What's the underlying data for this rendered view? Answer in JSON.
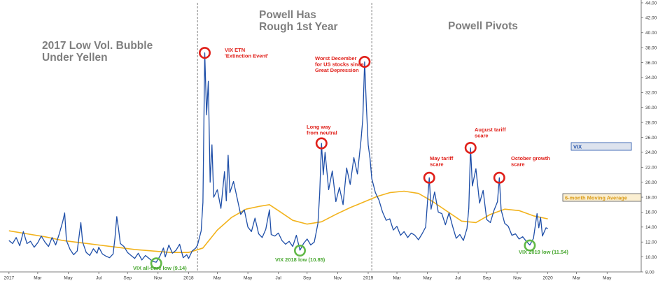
{
  "chart_data": {
    "type": "line",
    "title": "",
    "ylim": [
      8,
      44
    ],
    "y_ticks": [
      "8.00",
      "10.00",
      "12.00",
      "14.00",
      "16.00",
      "18.00",
      "20.00",
      "22.00",
      "24.00",
      "26.00",
      "28.00",
      "30.00",
      "32.00",
      "34.00",
      "36.00",
      "38.00",
      "40.00",
      "42.00",
      "44.00"
    ],
    "x_ticks": [
      {
        "label": "2017",
        "t": 2017.0
      },
      {
        "label": "Mar",
        "t": 2017.16
      },
      {
        "label": "May",
        "t": 2017.33
      },
      {
        "label": "Jul",
        "t": 2017.5
      },
      {
        "label": "Sep",
        "t": 2017.66
      },
      {
        "label": "Nov",
        "t": 2017.83
      },
      {
        "label": "2018",
        "t": 2018.0
      },
      {
        "label": "Mar",
        "t": 2018.16
      },
      {
        "label": "May",
        "t": 2018.33
      },
      {
        "label": "Jul",
        "t": 2018.5
      },
      {
        "label": "Sep",
        "t": 2018.66
      },
      {
        "label": "Nov",
        "t": 2018.83
      },
      {
        "label": "2019",
        "t": 2019.0
      },
      {
        "label": "Mar",
        "t": 2019.16
      },
      {
        "label": "May",
        "t": 2019.33
      },
      {
        "label": "Jul",
        "t": 2019.5
      },
      {
        "label": "Sep",
        "t": 2019.66
      },
      {
        "label": "Nov",
        "t": 2019.83
      },
      {
        "label": "2020",
        "t": 2020.0
      },
      {
        "label": "Mar",
        "t": 2020.16
      },
      {
        "label": "May",
        "t": 2020.33
      }
    ],
    "eras": [
      {
        "text": [
          "2017 Low Vol. Bubble",
          "Under Yellen"
        ]
      },
      {
        "text": [
          "Powell Has",
          "Rough 1st Year"
        ]
      },
      {
        "text": [
          "Powell Pivots"
        ]
      }
    ],
    "dividers": [
      2018.05,
      2019.02
    ],
    "series": [
      {
        "name": "VIX",
        "color": "#1f4fa8",
        "points": [
          [
            2017.0,
            12.2
          ],
          [
            2017.02,
            11.8
          ],
          [
            2017.04,
            12.6
          ],
          [
            2017.06,
            11.5
          ],
          [
            2017.08,
            13.4
          ],
          [
            2017.1,
            11.8
          ],
          [
            2017.12,
            12.1
          ],
          [
            2017.14,
            11.3
          ],
          [
            2017.16,
            11.9
          ],
          [
            2017.18,
            12.8
          ],
          [
            2017.2,
            12.0
          ],
          [
            2017.22,
            11.4
          ],
          [
            2017.24,
            12.6
          ],
          [
            2017.26,
            11.6
          ],
          [
            2017.28,
            13.1
          ],
          [
            2017.3,
            14.8
          ],
          [
            2017.31,
            15.9
          ],
          [
            2017.32,
            12.2
          ],
          [
            2017.34,
            11.0
          ],
          [
            2017.36,
            10.3
          ],
          [
            2017.38,
            10.8
          ],
          [
            2017.4,
            14.6
          ],
          [
            2017.41,
            12.0
          ],
          [
            2017.43,
            10.6
          ],
          [
            2017.45,
            10.2
          ],
          [
            2017.47,
            11.1
          ],
          [
            2017.49,
            10.5
          ],
          [
            2017.5,
            11.3
          ],
          [
            2017.52,
            10.4
          ],
          [
            2017.54,
            10.1
          ],
          [
            2017.56,
            9.9
          ],
          [
            2017.58,
            10.4
          ],
          [
            2017.59,
            12.5
          ],
          [
            2017.6,
            15.4
          ],
          [
            2017.61,
            13.8
          ],
          [
            2017.62,
            11.8
          ],
          [
            2017.64,
            11.4
          ],
          [
            2017.66,
            10.6
          ],
          [
            2017.68,
            10.2
          ],
          [
            2017.7,
            9.8
          ],
          [
            2017.72,
            10.5
          ],
          [
            2017.74,
            9.6
          ],
          [
            2017.76,
            10.2
          ],
          [
            2017.78,
            9.8
          ],
          [
            2017.8,
            9.4
          ],
          [
            2017.82,
            9.3
          ],
          [
            2017.84,
            10.1
          ],
          [
            2017.86,
            11.2
          ],
          [
            2017.87,
            10.0
          ],
          [
            2017.89,
            11.6
          ],
          [
            2017.91,
            10.5
          ],
          [
            2017.93,
            10.9
          ],
          [
            2017.95,
            11.7
          ],
          [
            2017.97,
            9.9
          ],
          [
            2017.99,
            10.3
          ],
          [
            2018.0,
            9.8
          ],
          [
            2018.02,
            10.8
          ],
          [
            2018.04,
            11.2
          ],
          [
            2018.05,
            11.6
          ],
          [
            2018.07,
            13.5
          ],
          [
            2018.08,
            17.3
          ],
          [
            2018.09,
            37.3
          ],
          [
            2018.1,
            29.0
          ],
          [
            2018.11,
            33.5
          ],
          [
            2018.12,
            20.0
          ],
          [
            2018.13,
            25.0
          ],
          [
            2018.14,
            18.0
          ],
          [
            2018.16,
            19.0
          ],
          [
            2018.18,
            16.5
          ],
          [
            2018.2,
            21.4
          ],
          [
            2018.21,
            17.5
          ],
          [
            2018.22,
            23.6
          ],
          [
            2018.23,
            18.6
          ],
          [
            2018.25,
            20.1
          ],
          [
            2018.27,
            17.9
          ],
          [
            2018.29,
            15.7
          ],
          [
            2018.31,
            16.3
          ],
          [
            2018.33,
            14.0
          ],
          [
            2018.35,
            13.4
          ],
          [
            2018.37,
            15.2
          ],
          [
            2018.39,
            13.1
          ],
          [
            2018.41,
            12.6
          ],
          [
            2018.43,
            13.7
          ],
          [
            2018.45,
            16.3
          ],
          [
            2018.46,
            13.0
          ],
          [
            2018.48,
            12.8
          ],
          [
            2018.5,
            13.2
          ],
          [
            2018.52,
            12.2
          ],
          [
            2018.54,
            11.7
          ],
          [
            2018.56,
            12.1
          ],
          [
            2018.58,
            11.4
          ],
          [
            2018.6,
            12.9
          ],
          [
            2018.62,
            10.9
          ],
          [
            2018.64,
            11.8
          ],
          [
            2018.66,
            12.4
          ],
          [
            2018.68,
            11.6
          ],
          [
            2018.7,
            12.0
          ],
          [
            2018.72,
            14.5
          ],
          [
            2018.73,
            18.5
          ],
          [
            2018.74,
            25.2
          ],
          [
            2018.75,
            21.0
          ],
          [
            2018.76,
            24.0
          ],
          [
            2018.78,
            19.0
          ],
          [
            2018.8,
            21.5
          ],
          [
            2018.82,
            17.4
          ],
          [
            2018.84,
            19.3
          ],
          [
            2018.86,
            17.0
          ],
          [
            2018.88,
            21.9
          ],
          [
            2018.9,
            19.7
          ],
          [
            2018.92,
            23.3
          ],
          [
            2018.94,
            21.1
          ],
          [
            2018.96,
            25.6
          ],
          [
            2018.97,
            28.5
          ],
          [
            2018.98,
            36.1
          ],
          [
            2018.99,
            30.2
          ],
          [
            2019.0,
            25.0
          ],
          [
            2019.01,
            23.2
          ],
          [
            2019.02,
            20.5
          ],
          [
            2019.04,
            18.6
          ],
          [
            2019.06,
            17.6
          ],
          [
            2019.08,
            16.0
          ],
          [
            2019.1,
            14.9
          ],
          [
            2019.12,
            15.1
          ],
          [
            2019.14,
            13.6
          ],
          [
            2019.16,
            14.1
          ],
          [
            2019.18,
            12.9
          ],
          [
            2019.2,
            13.4
          ],
          [
            2019.22,
            12.6
          ],
          [
            2019.24,
            13.2
          ],
          [
            2019.26,
            12.9
          ],
          [
            2019.28,
            12.3
          ],
          [
            2019.3,
            13.1
          ],
          [
            2019.32,
            14.0
          ],
          [
            2019.34,
            20.6
          ],
          [
            2019.35,
            16.4
          ],
          [
            2019.37,
            18.7
          ],
          [
            2019.39,
            16.0
          ],
          [
            2019.41,
            15.8
          ],
          [
            2019.43,
            14.3
          ],
          [
            2019.45,
            15.9
          ],
          [
            2019.47,
            14.1
          ],
          [
            2019.49,
            12.5
          ],
          [
            2019.51,
            13.0
          ],
          [
            2019.53,
            12.2
          ],
          [
            2019.55,
            13.8
          ],
          [
            2019.56,
            16.5
          ],
          [
            2019.57,
            24.6
          ],
          [
            2019.58,
            19.5
          ],
          [
            2019.6,
            21.8
          ],
          [
            2019.62,
            17.2
          ],
          [
            2019.64,
            18.9
          ],
          [
            2019.66,
            15.0
          ],
          [
            2019.68,
            14.6
          ],
          [
            2019.7,
            16.2
          ],
          [
            2019.72,
            17.4
          ],
          [
            2019.73,
            20.6
          ],
          [
            2019.74,
            16.3
          ],
          [
            2019.76,
            14.5
          ],
          [
            2019.78,
            14.1
          ],
          [
            2019.8,
            12.9
          ],
          [
            2019.82,
            13.1
          ],
          [
            2019.84,
            12.4
          ],
          [
            2019.86,
            12.7
          ],
          [
            2019.88,
            12.1
          ],
          [
            2019.9,
            11.6
          ],
          [
            2019.92,
            12.5
          ],
          [
            2019.94,
            15.8
          ],
          [
            2019.95,
            13.9
          ],
          [
            2019.96,
            15.3
          ],
          [
            2019.97,
            12.8
          ],
          [
            2019.99,
            13.9
          ],
          [
            2020.0,
            13.8
          ]
        ]
      },
      {
        "name": "6-month Moving Average",
        "color": "#f2b31d",
        "points": [
          [
            2017.0,
            13.5
          ],
          [
            2017.1,
            13.1
          ],
          [
            2017.2,
            12.7
          ],
          [
            2017.3,
            12.2
          ],
          [
            2017.4,
            11.9
          ],
          [
            2017.5,
            11.6
          ],
          [
            2017.6,
            11.3
          ],
          [
            2017.7,
            11.0
          ],
          [
            2017.8,
            10.8
          ],
          [
            2017.9,
            10.6
          ],
          [
            2018.0,
            10.6
          ],
          [
            2018.08,
            11.2
          ],
          [
            2018.16,
            13.6
          ],
          [
            2018.24,
            15.3
          ],
          [
            2018.32,
            16.4
          ],
          [
            2018.4,
            16.8
          ],
          [
            2018.45,
            17.0
          ],
          [
            2018.5,
            16.2
          ],
          [
            2018.58,
            14.9
          ],
          [
            2018.66,
            14.4
          ],
          [
            2018.74,
            14.7
          ],
          [
            2018.82,
            15.7
          ],
          [
            2018.9,
            16.6
          ],
          [
            2018.98,
            17.4
          ],
          [
            2019.05,
            18.1
          ],
          [
            2019.12,
            18.6
          ],
          [
            2019.2,
            18.8
          ],
          [
            2019.28,
            18.5
          ],
          [
            2019.36,
            17.4
          ],
          [
            2019.44,
            16.1
          ],
          [
            2019.52,
            14.8
          ],
          [
            2019.6,
            14.6
          ],
          [
            2019.68,
            15.7
          ],
          [
            2019.76,
            16.4
          ],
          [
            2019.84,
            16.2
          ],
          [
            2019.92,
            15.5
          ],
          [
            2020.0,
            15.1
          ]
        ]
      }
    ],
    "annotations": [
      {
        "text": [
          "VIX ETN",
          "'Extinction Event'"
        ],
        "t": 2018.09,
        "y": 37.3,
        "kind": "red"
      },
      {
        "text": [
          "Long way",
          "from neutral"
        ],
        "t": 2018.74,
        "y": 25.2,
        "kind": "red"
      },
      {
        "text": [
          "Worst December",
          "for US stocks since",
          "Great Depression"
        ],
        "t": 2018.98,
        "y": 36.1,
        "kind": "red"
      },
      {
        "text": [
          "May tariff",
          "scare"
        ],
        "t": 2019.34,
        "y": 20.6,
        "kind": "red"
      },
      {
        "text": [
          "August tariff",
          "scare"
        ],
        "t": 2019.57,
        "y": 24.6,
        "kind": "red"
      },
      {
        "text": [
          "October growth",
          "scare"
        ],
        "t": 2019.73,
        "y": 20.6,
        "kind": "red"
      },
      {
        "text": [
          "VIX all-time low (9.14)"
        ],
        "t": 2017.82,
        "y": 9.14,
        "kind": "green"
      },
      {
        "text": [
          "VIX 2018 low (10.85)"
        ],
        "t": 2018.62,
        "y": 10.85,
        "kind": "green"
      },
      {
        "text": [
          "VIX 2019 low (11.54)"
        ],
        "t": 2019.9,
        "y": 11.54,
        "kind": "green"
      }
    ],
    "legend": [
      {
        "text": "VIX",
        "kind": "vix"
      },
      {
        "text": "6-month Moving Average",
        "kind": "ma"
      }
    ]
  }
}
